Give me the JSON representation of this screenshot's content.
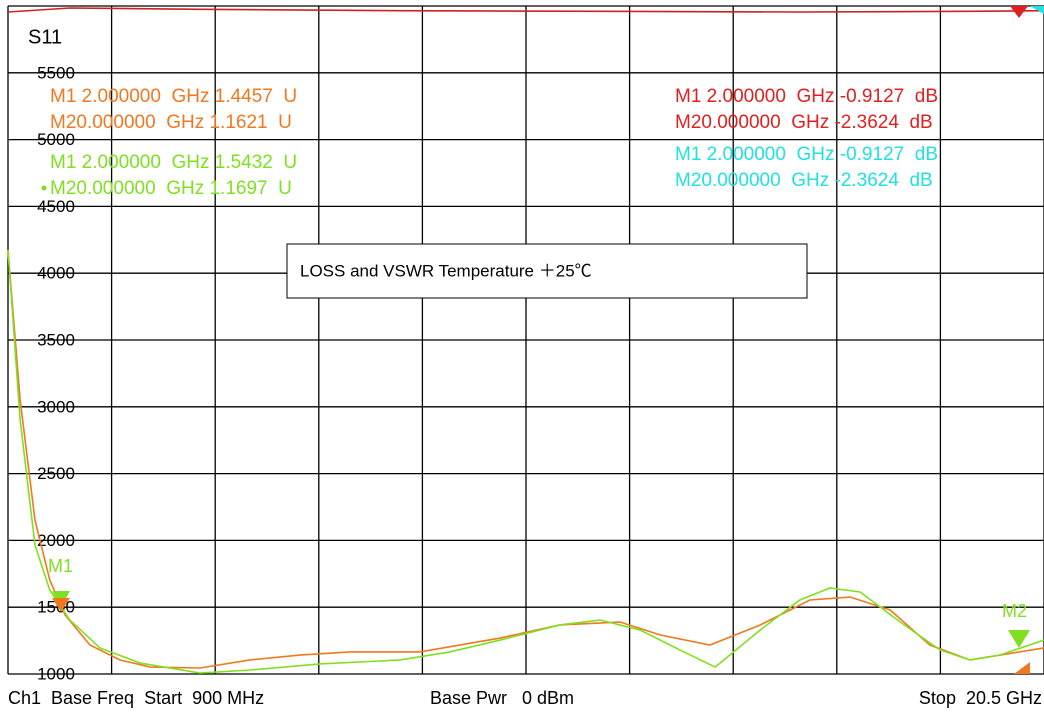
{
  "chart_data": {
    "type": "line",
    "title": "S11",
    "annotation": "LOSS and VSWR Temperature ＋25℃",
    "xlim": [
      0.9,
      20.5
    ],
    "xticks": [
      0.9,
      2.86,
      4.82,
      6.78,
      8.74,
      10.7,
      12.66,
      14.62,
      16.58,
      18.54,
      20.5
    ],
    "ylim": [
      1000,
      6000
    ],
    "yticks": [
      1000,
      1500,
      2000,
      2500,
      3000,
      3500,
      4000,
      4500,
      5000,
      5500
    ],
    "grid": true,
    "series": [
      {
        "color": "#f07820",
        "x": [
          0.9,
          1.13,
          1.41,
          1.69,
          1.98,
          2.45,
          3.02,
          3.59,
          4.53,
          5.48,
          6.42,
          7.37,
          8.69,
          10.21,
          11.34,
          12.48,
          13.24,
          14.18,
          15.13,
          16.07,
          16.83,
          17.59,
          18.34,
          19.1,
          19.67,
          20.5
        ],
        "values": [
          4174,
          3051,
          2153,
          1704,
          1442,
          1217,
          1105,
          1052,
          1045,
          1105,
          1142,
          1165,
          1165,
          1269,
          1367,
          1389,
          1292,
          1217,
          1367,
          1554,
          1576,
          1479,
          1217,
          1105,
          1142,
          1195
        ]
      },
      {
        "color": "#80e020",
        "x": [
          0.9,
          1.13,
          1.41,
          1.69,
          2.07,
          2.64,
          3.4,
          4.53,
          5.48,
          6.8,
          8.32,
          9.26,
          10.21,
          11.34,
          12.1,
          12.86,
          13.61,
          14.28,
          15.13,
          15.88,
          16.45,
          17.02,
          17.78,
          18.53,
          19.1,
          19.67,
          20.5
        ],
        "values": [
          4174,
          2901,
          1966,
          1629,
          1404,
          1195,
          1082,
          1007,
          1030,
          1075,
          1105,
          1165,
          1254,
          1367,
          1404,
          1329,
          1180,
          1052,
          1329,
          1554,
          1644,
          1614,
          1389,
          1180,
          1105,
          1142,
          1254
        ]
      },
      {
        "color": "#d02020",
        "x": [
          0.9,
          2.07,
          4.53,
          8.32,
          12.1,
          15.88,
          19.1,
          20.5
        ],
        "values": [
          5955,
          5985,
          5975,
          5965,
          5960,
          5955,
          5960,
          5965
        ]
      }
    ],
    "readouts": [
      {
        "color": "#f07820",
        "lines": [
          "M1 2.000000  GHz 1.4457  U",
          "M20.000000  GHz 1.1621  U"
        ]
      },
      {
        "color": "#80e020",
        "lines": [
          "M1 2.000000  GHz 1.5432  U",
          "M20.000000  GHz 1.1697  U"
        ]
      },
      {
        "color": "#e02020",
        "lines": [
          "M1 2.000000  GHz -0.9127  dB",
          "M20.000000  GHz -2.3624  dB"
        ]
      },
      {
        "color": "#20e0e0",
        "lines": [
          "M1 2.000000  GHz -0.9127  dB",
          "M20.000000  GHz -2.3624  dB"
        ]
      }
    ],
    "marker_labels": [
      "M1",
      "M2"
    ],
    "footer": [
      "Ch1  Base Freq  Start  900 MHz",
      "Base Pwr   0 dBm",
      "Stop  20.5 GHz"
    ]
  }
}
